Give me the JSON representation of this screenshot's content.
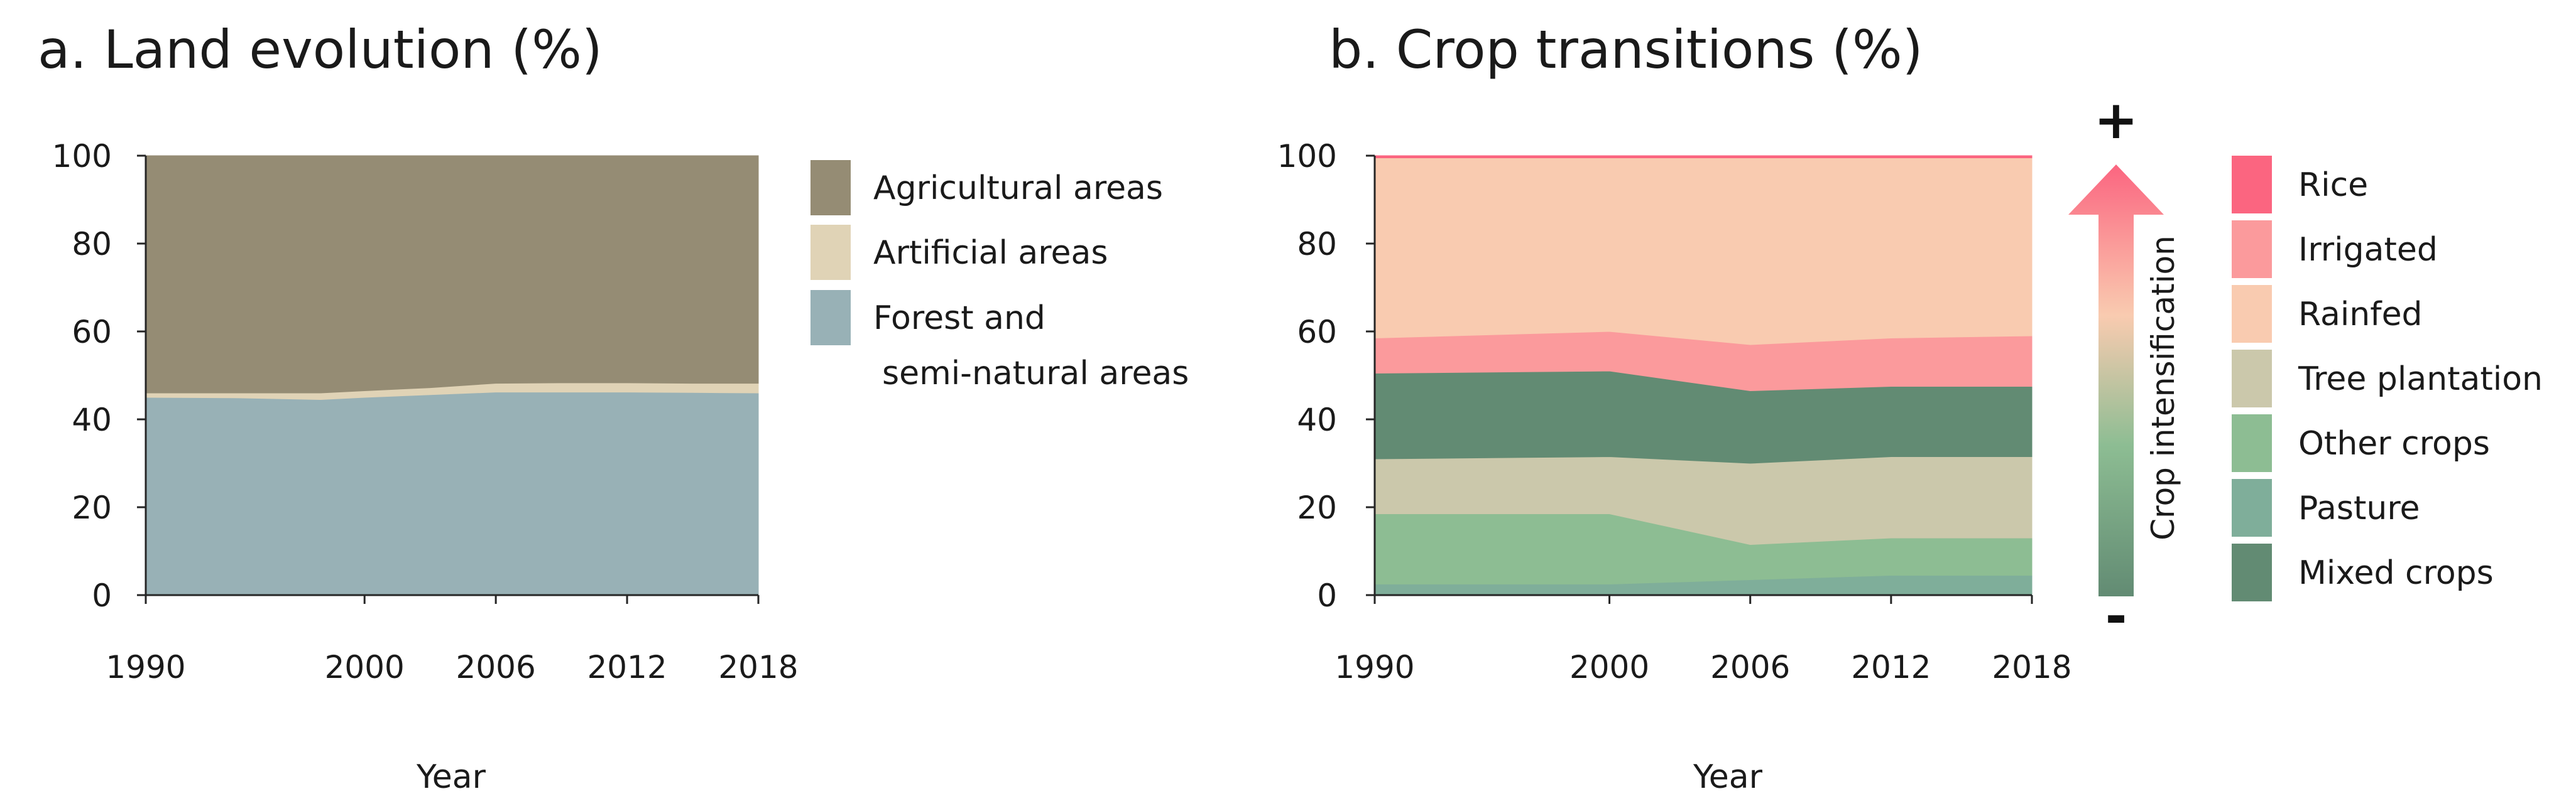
{
  "chart_data": [
    {
      "type": "area",
      "stacked": true,
      "title": "a. Land evolution (%)",
      "xlabel": "Year",
      "ylabel": "",
      "x": [
        1990,
        1994,
        1998,
        2000,
        2003,
        2006,
        2009,
        2012,
        2015,
        2018
      ],
      "x_ticks": [
        "1990",
        "2000",
        "2006",
        "2012",
        "2018"
      ],
      "xlim": [
        1990,
        2018
      ],
      "y_ticks": [
        "0",
        "20",
        "40",
        "60",
        "80",
        "100"
      ],
      "ylim": [
        0,
        100
      ],
      "series": [
        {
          "name": "Forest and semi-natural areas",
          "color": "#98b1b6",
          "values": [
            45.0,
            44.9,
            44.5,
            45.0,
            45.6,
            46.2,
            46.2,
            46.2,
            46.1,
            46.0
          ]
        },
        {
          "name": "Artificial areas",
          "color": "#e0d3b6",
          "values": [
            1.0,
            1.1,
            1.5,
            1.5,
            1.6,
            2.0,
            2.1,
            2.1,
            2.1,
            2.2
          ]
        },
        {
          "name": "Agricultural areas",
          "color": "#958c74",
          "values": [
            54.0,
            54.0,
            54.0,
            53.5,
            52.8,
            51.8,
            51.7,
            51.7,
            51.8,
            51.8
          ]
        }
      ],
      "legend": [
        {
          "label": "Agricultural areas",
          "color": "#958c74"
        },
        {
          "label": "Artificial areas",
          "color": "#e0d3b6"
        },
        {
          "label": "Forest and",
          "label2": "semi-natural areas",
          "color": "#98b1b6"
        }
      ]
    },
    {
      "type": "area",
      "stacked": true,
      "title": "b. Crop transitions (%)",
      "xlabel": "Year",
      "ylabel": "",
      "x": [
        1990,
        2000,
        2006,
        2012,
        2018
      ],
      "x_ticks": [
        "1990",
        "2000",
        "2006",
        "2012",
        "2018"
      ],
      "xlim": [
        1990,
        2018
      ],
      "y_ticks": [
        "0",
        "20",
        "40",
        "60",
        "80",
        "100"
      ],
      "ylim": [
        0,
        100
      ],
      "series": [
        {
          "name": "Pasture",
          "color": "#7fae9a",
          "values": [
            2.5,
            2.5,
            3.5,
            4.5,
            4.5
          ]
        },
        {
          "name": "Other crops",
          "color": "#8dbd93",
          "values": [
            16,
            16,
            8,
            8.5,
            8.5
          ]
        },
        {
          "name": "Tree plantation",
          "color": "#cbc8ab",
          "values": [
            12.5,
            13,
            18.5,
            18.5,
            18.5
          ]
        },
        {
          "name": "Mixed crops",
          "color": "#628b73",
          "values": [
            19.5,
            19.5,
            16.5,
            16,
            16
          ]
        },
        {
          "name": "Irrigated",
          "color": "#fb9a9c",
          "values": [
            8,
            9,
            10.5,
            11,
            11.5
          ]
        },
        {
          "name": "Rainfed",
          "color": "#f9cbb0",
          "values": [
            41,
            39.5,
            42.5,
            41,
            40.5
          ]
        },
        {
          "name": "Rice",
          "color": "#fb6580",
          "values": [
            0.5,
            0.5,
            0.5,
            0.5,
            0.5
          ]
        }
      ],
      "legend": [
        {
          "label": "Rice",
          "color": "#fb6580"
        },
        {
          "label": "Irrigated",
          "color": "#fb9a9c"
        },
        {
          "label": "Rainfed",
          "color": "#f9cbb0"
        },
        {
          "label": "Tree plantation",
          "color": "#cbc8ab"
        },
        {
          "label": "Other crops",
          "color": "#8dbd93"
        },
        {
          "label": "Pasture",
          "color": "#7fae9a"
        },
        {
          "label": "Mixed crops",
          "color": "#628b73"
        }
      ],
      "intensification": {
        "label": "Crop intensification",
        "plus": "+",
        "minus": "-",
        "colors": [
          "#628b73",
          "#8dbd93",
          "#f9cbb0",
          "#fb6580"
        ]
      }
    }
  ]
}
